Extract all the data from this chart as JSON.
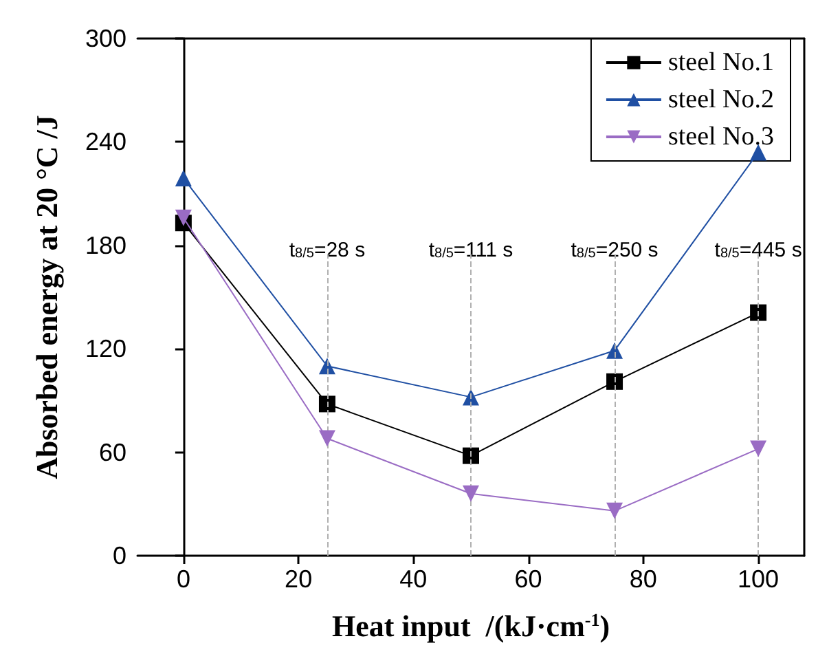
{
  "chart_data": {
    "type": "line",
    "xlabel": "Heat input  /(kJ·cm$^{-1}$)",
    "ylabel": "Absorbed energy at 20 °C /J",
    "x": [
      0,
      25,
      50,
      75,
      100
    ],
    "series": [
      {
        "name": "steel No.1",
        "color": "#000000",
        "marker": "square",
        "values": [
          193,
          88,
          58,
          101,
          141
        ]
      },
      {
        "name": "steel No.2",
        "color": "#1f4fa3",
        "marker": "triangle",
        "values": [
          219,
          110,
          92,
          119,
          234
        ]
      },
      {
        "name": "steel No.3",
        "color": "#9a6cc4",
        "marker": "triangle-down",
        "values": [
          196,
          68,
          36,
          26,
          62
        ]
      }
    ],
    "xlim": [
      -8,
      108
    ],
    "xticks": [
      0,
      20,
      40,
      60,
      80,
      100
    ],
    "ylim": [
      0,
      300
    ],
    "yticks": [
      0,
      60,
      120,
      180,
      240,
      300
    ],
    "ref_lines": [
      {
        "axis": "x",
        "value": 25,
        "color": "#b0b0b0",
        "line_style": "dashed"
      },
      {
        "axis": "x",
        "value": 50,
        "color": "#b0b0b0",
        "line_style": "dashed"
      },
      {
        "axis": "x",
        "value": 75,
        "color": "#b0b0b0",
        "line_style": "dashed"
      },
      {
        "axis": "x",
        "value": 100,
        "color": "#b0b0b0",
        "line_style": "dashed"
      }
    ],
    "annotations": [
      {
        "text": "t$_{8/5}$=28 s",
        "x": 25
      },
      {
        "text": "t$_{8/5}$=111 s",
        "x": 50
      },
      {
        "text": "t$_{8/5}$=250 s",
        "x": 75
      },
      {
        "text": "t$_{8/5}$=445 s",
        "x": 100
      }
    ],
    "legend": "top right",
    "grid": false,
    "line_style": "solid"
  }
}
